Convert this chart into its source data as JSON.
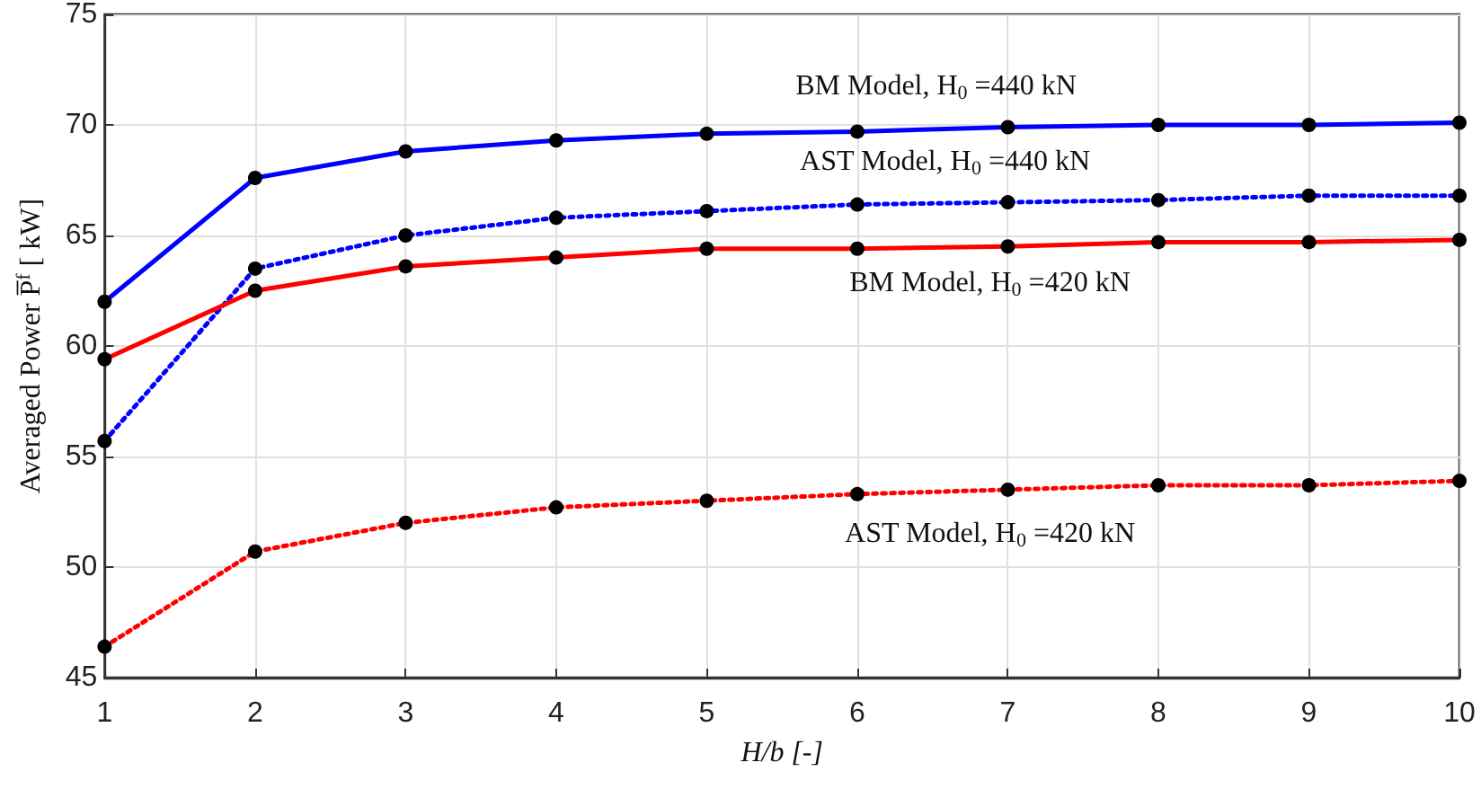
{
  "chart_data": {
    "type": "line",
    "xlabel": "H/b [-]",
    "ylabel": "Averaged Power P̅$^{f}$ [ kW]",
    "x": [
      1,
      2,
      3,
      4,
      5,
      6,
      7,
      8,
      9,
      10
    ],
    "series": [
      {
        "name": "BM Model, H$_{0}$ =440 kN",
        "color": "#0000ff",
        "line_style": "solid",
        "values": [
          62.0,
          67.6,
          68.8,
          69.3,
          69.6,
          69.7,
          69.9,
          70.0,
          70.0,
          70.1
        ]
      },
      {
        "name": "AST Model, H$_{0}$ =440 kN",
        "color": "#0000ff",
        "line_style": "dotted",
        "values": [
          55.7,
          63.5,
          65.0,
          65.8,
          66.1,
          66.4,
          66.5,
          66.6,
          66.8,
          66.8
        ]
      },
      {
        "name": "BM Model, H$_{0}$ =420 kN",
        "color": "#ff0000",
        "line_style": "solid",
        "values": [
          59.4,
          62.5,
          63.6,
          64.0,
          64.4,
          64.4,
          64.5,
          64.7,
          64.7,
          64.8
        ]
      },
      {
        "name": "AST Model, H$_{0}$ =420 kN",
        "color": "#ff0000",
        "line_style": "dotted",
        "values": [
          46.4,
          50.7,
          52.0,
          52.7,
          53.0,
          53.3,
          53.5,
          53.7,
          53.7,
          53.9
        ]
      }
    ],
    "xlim": [
      1,
      10
    ],
    "xticks": [
      1,
      2,
      3,
      4,
      5,
      6,
      7,
      8,
      9,
      10
    ],
    "ylim": [
      45,
      75
    ],
    "yticks": [
      45,
      50,
      55,
      60,
      65,
      70,
      75
    ],
    "grid": true,
    "legend": false,
    "marker": "circle"
  }
}
